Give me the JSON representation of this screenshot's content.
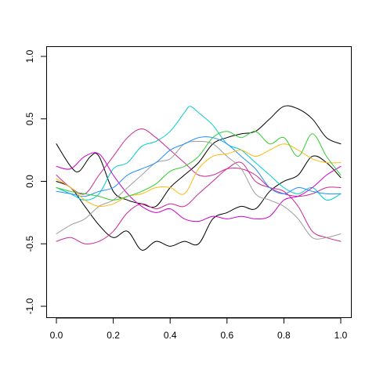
{
  "chart_data": {
    "type": "line",
    "title": "",
    "xlabel": "",
    "ylabel": "",
    "xlim": [
      0,
      1
    ],
    "ylim": [
      -1,
      1
    ],
    "x_ticks": [
      "0.0",
      "0.2",
      "0.4",
      "0.6",
      "0.8",
      "1.0"
    ],
    "y_ticks": [
      "-1.0",
      "-0.5",
      "0.0",
      "0.5",
      "1.0"
    ],
    "grid": false,
    "legend": "none",
    "series": [
      {
        "color": "#000000",
        "points": [
          [
            0.0,
            0.3
          ],
          [
            0.05,
            0.12
          ],
          [
            0.08,
            0.08
          ],
          [
            0.12,
            0.2
          ],
          [
            0.15,
            0.2
          ],
          [
            0.2,
            -0.08
          ],
          [
            0.25,
            -0.15
          ],
          [
            0.3,
            -0.18
          ],
          [
            0.35,
            -0.2
          ],
          [
            0.4,
            -0.05
          ],
          [
            0.45,
            0.05
          ],
          [
            0.5,
            0.15
          ],
          [
            0.55,
            0.3
          ],
          [
            0.6,
            0.35
          ],
          [
            0.65,
            0.38
          ],
          [
            0.7,
            0.4
          ],
          [
            0.75,
            0.5
          ],
          [
            0.8,
            0.6
          ],
          [
            0.85,
            0.58
          ],
          [
            0.9,
            0.5
          ],
          [
            0.95,
            0.35
          ],
          [
            1.0,
            0.3
          ]
        ]
      },
      {
        "color": "#000000",
        "points": [
          [
            0.0,
            0.0
          ],
          [
            0.05,
            -0.05
          ],
          [
            0.1,
            -0.2
          ],
          [
            0.15,
            -0.35
          ],
          [
            0.2,
            -0.45
          ],
          [
            0.25,
            -0.4
          ],
          [
            0.3,
            -0.55
          ],
          [
            0.35,
            -0.48
          ],
          [
            0.4,
            -0.52
          ],
          [
            0.45,
            -0.48
          ],
          [
            0.5,
            -0.5
          ],
          [
            0.55,
            -0.3
          ],
          [
            0.6,
            -0.25
          ],
          [
            0.65,
            -0.2
          ],
          [
            0.7,
            -0.22
          ],
          [
            0.75,
            -0.08
          ],
          [
            0.8,
            0.0
          ],
          [
            0.85,
            0.05
          ],
          [
            0.9,
            0.2
          ],
          [
            0.95,
            0.15
          ],
          [
            1.0,
            0.03
          ]
        ]
      },
      {
        "color": "#00CDCD",
        "points": [
          [
            0.0,
            -0.05
          ],
          [
            0.05,
            -0.1
          ],
          [
            0.1,
            -0.15
          ],
          [
            0.15,
            -0.1
          ],
          [
            0.2,
            0.1
          ],
          [
            0.25,
            0.15
          ],
          [
            0.3,
            0.28
          ],
          [
            0.35,
            0.32
          ],
          [
            0.4,
            0.4
          ],
          [
            0.45,
            0.55
          ],
          [
            0.47,
            0.6
          ],
          [
            0.5,
            0.55
          ],
          [
            0.55,
            0.45
          ],
          [
            0.6,
            0.3
          ],
          [
            0.65,
            0.25
          ],
          [
            0.7,
            0.15
          ],
          [
            0.75,
            0.05
          ],
          [
            0.8,
            -0.05
          ],
          [
            0.85,
            -0.1
          ],
          [
            0.9,
            -0.05
          ],
          [
            0.95,
            -0.15
          ],
          [
            1.0,
            -0.1
          ]
        ]
      },
      {
        "color": "#CD2990",
        "points": [
          [
            0.0,
            0.05
          ],
          [
            0.05,
            -0.05
          ],
          [
            0.1,
            -0.1
          ],
          [
            0.15,
            0.05
          ],
          [
            0.2,
            0.2
          ],
          [
            0.25,
            0.35
          ],
          [
            0.3,
            0.42
          ],
          [
            0.35,
            0.35
          ],
          [
            0.4,
            0.25
          ],
          [
            0.45,
            0.15
          ],
          [
            0.5,
            0.05
          ],
          [
            0.55,
            0.05
          ],
          [
            0.6,
            0.1
          ],
          [
            0.65,
            0.1
          ],
          [
            0.7,
            0.05
          ],
          [
            0.75,
            -0.05
          ],
          [
            0.8,
            -0.1
          ],
          [
            0.85,
            -0.12
          ],
          [
            0.9,
            -0.1
          ],
          [
            0.95,
            -0.05
          ],
          [
            1.0,
            -0.05
          ]
        ]
      },
      {
        "color": "#CD2990",
        "points": [
          [
            0.0,
            -0.48
          ],
          [
            0.05,
            -0.45
          ],
          [
            0.1,
            -0.5
          ],
          [
            0.15,
            -0.48
          ],
          [
            0.2,
            -0.4
          ],
          [
            0.25,
            -0.25
          ],
          [
            0.3,
            -0.18
          ],
          [
            0.35,
            -0.22
          ],
          [
            0.4,
            -0.18
          ],
          [
            0.45,
            -0.2
          ],
          [
            0.5,
            -0.1
          ],
          [
            0.55,
            0.0
          ],
          [
            0.6,
            0.1
          ],
          [
            0.65,
            0.15
          ],
          [
            0.7,
            0.0
          ],
          [
            0.75,
            -0.05
          ],
          [
            0.8,
            -0.08
          ],
          [
            0.85,
            -0.2
          ],
          [
            0.9,
            -0.4
          ],
          [
            0.95,
            -0.45
          ],
          [
            1.0,
            -0.48
          ]
        ]
      },
      {
        "color": "#CD00CD",
        "points": [
          [
            0.0,
            0.12
          ],
          [
            0.05,
            0.1
          ],
          [
            0.1,
            0.2
          ],
          [
            0.15,
            0.22
          ],
          [
            0.2,
            0.05
          ],
          [
            0.25,
            -0.1
          ],
          [
            0.3,
            -0.2
          ],
          [
            0.35,
            -0.25
          ],
          [
            0.4,
            -0.22
          ],
          [
            0.45,
            -0.3
          ],
          [
            0.5,
            -0.32
          ],
          [
            0.55,
            -0.28
          ],
          [
            0.6,
            -0.3
          ],
          [
            0.65,
            -0.28
          ],
          [
            0.7,
            -0.3
          ],
          [
            0.75,
            -0.28
          ],
          [
            0.8,
            -0.15
          ],
          [
            0.85,
            -0.12
          ],
          [
            0.9,
            -0.05
          ],
          [
            0.95,
            0.05
          ],
          [
            1.0,
            0.12
          ]
        ]
      },
      {
        "color": "#9E9E9E",
        "points": [
          [
            0.0,
            -0.42
          ],
          [
            0.05,
            -0.35
          ],
          [
            0.1,
            -0.3
          ],
          [
            0.15,
            -0.2
          ],
          [
            0.2,
            -0.15
          ],
          [
            0.25,
            -0.05
          ],
          [
            0.3,
            0.05
          ],
          [
            0.35,
            0.15
          ],
          [
            0.4,
            0.18
          ],
          [
            0.45,
            0.3
          ],
          [
            0.5,
            0.32
          ],
          [
            0.55,
            0.3
          ],
          [
            0.6,
            0.2
          ],
          [
            0.65,
            0.1
          ],
          [
            0.7,
            -0.1
          ],
          [
            0.75,
            -0.15
          ],
          [
            0.8,
            -0.2
          ],
          [
            0.85,
            -0.3
          ],
          [
            0.9,
            -0.45
          ],
          [
            0.95,
            -0.45
          ],
          [
            1.0,
            -0.42
          ]
        ]
      },
      {
        "color": "#1E90FF",
        "points": [
          [
            0.0,
            -0.08
          ],
          [
            0.05,
            -0.1
          ],
          [
            0.1,
            -0.12
          ],
          [
            0.15,
            -0.08
          ],
          [
            0.2,
            -0.05
          ],
          [
            0.25,
            0.05
          ],
          [
            0.3,
            0.1
          ],
          [
            0.35,
            0.15
          ],
          [
            0.4,
            0.25
          ],
          [
            0.45,
            0.3
          ],
          [
            0.5,
            0.35
          ],
          [
            0.55,
            0.35
          ],
          [
            0.6,
            0.3
          ],
          [
            0.65,
            0.2
          ],
          [
            0.7,
            0.1
          ],
          [
            0.75,
            -0.05
          ],
          [
            0.8,
            -0.1
          ],
          [
            0.85,
            -0.05
          ],
          [
            0.9,
            -0.08
          ],
          [
            0.95,
            -0.1
          ],
          [
            1.0,
            -0.1
          ]
        ]
      },
      {
        "color": "#FFB90F",
        "points": [
          [
            0.0,
            0.02
          ],
          [
            0.05,
            -0.05
          ],
          [
            0.1,
            -0.15
          ],
          [
            0.15,
            -0.2
          ],
          [
            0.2,
            -0.18
          ],
          [
            0.25,
            -0.12
          ],
          [
            0.3,
            -0.1
          ],
          [
            0.35,
            -0.05
          ],
          [
            0.4,
            -0.05
          ],
          [
            0.45,
            -0.1
          ],
          [
            0.5,
            0.1
          ],
          [
            0.55,
            0.2
          ],
          [
            0.6,
            0.22
          ],
          [
            0.65,
            0.25
          ],
          [
            0.7,
            0.2
          ],
          [
            0.75,
            0.25
          ],
          [
            0.8,
            0.3
          ],
          [
            0.85,
            0.25
          ],
          [
            0.9,
            0.18
          ],
          [
            0.95,
            0.15
          ],
          [
            1.0,
            0.15
          ]
        ]
      },
      {
        "color": "#32CD32",
        "points": [
          [
            0.0,
            -0.05
          ],
          [
            0.05,
            -0.08
          ],
          [
            0.1,
            -0.1
          ],
          [
            0.15,
            -0.12
          ],
          [
            0.2,
            -0.15
          ],
          [
            0.25,
            -0.12
          ],
          [
            0.3,
            -0.08
          ],
          [
            0.35,
            -0.02
          ],
          [
            0.4,
            0.08
          ],
          [
            0.45,
            0.12
          ],
          [
            0.5,
            0.2
          ],
          [
            0.55,
            0.35
          ],
          [
            0.6,
            0.4
          ],
          [
            0.65,
            0.35
          ],
          [
            0.7,
            0.4
          ],
          [
            0.75,
            0.3
          ],
          [
            0.8,
            0.35
          ],
          [
            0.85,
            0.2
          ],
          [
            0.9,
            0.38
          ],
          [
            0.95,
            0.2
          ],
          [
            1.0,
            0.05
          ]
        ]
      }
    ]
  }
}
